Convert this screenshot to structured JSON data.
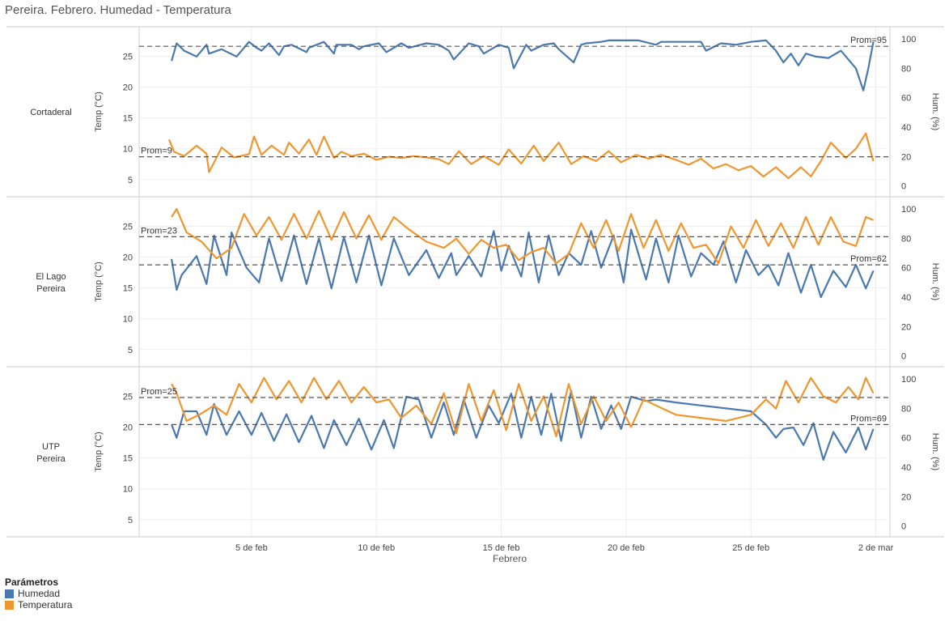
{
  "title": "Pereira. Febrero. Humedad - Temperatura",
  "legend": {
    "title": "Parámetros",
    "items": [
      {
        "label": "Humedad",
        "color": "#4a78b0"
      },
      {
        "label": "Temperatura",
        "color": "#f0962e"
      }
    ]
  },
  "chart_data": {
    "type": "line",
    "xlabel": "Febrero",
    "x_ticks": [
      "5 de feb",
      "10 de feb",
      "15 de feb",
      "20 de feb",
      "25 de feb",
      "2 de mar"
    ],
    "x_tick_days": [
      5,
      10,
      15,
      20,
      25,
      30
    ],
    "xlim": [
      0.5,
      30.5
    ],
    "grid": true,
    "legend_placement": "bottom-left",
    "left_axis": {
      "label": "Temp (°C)",
      "ticks": [
        5,
        10,
        15,
        20,
        25
      ]
    },
    "right_axis": {
      "label": "Hum. (%)",
      "ticks": [
        0,
        20,
        40,
        60,
        80,
        100
      ]
    },
    "panels": [
      {
        "name": "Cortaderal",
        "temp_range": [
          3,
          29
        ],
        "hum_range": [
          -4,
          105
        ],
        "temp_mean": {
          "label": "Prom=9",
          "value": 8.7
        },
        "hum_mean": {
          "label": "Prom=95",
          "value": 95
        },
        "series": [
          {
            "name": "Humedad",
            "axis": "right",
            "x": [
              1.8,
              2.0,
              2.3,
              2.8,
              3.2,
              3.3,
              3.8,
              4.4,
              4.9,
              5.2,
              5.4,
              5.7,
              6.1,
              6.3,
              6.6,
              7.2,
              7.3,
              7.9,
              8.3,
              8.4,
              9.0,
              9.3,
              9.5,
              10.1,
              10.4,
              11.0,
              11.3,
              12.0,
              12.5,
              12.9,
              13.1,
              13.7,
              14.1,
              14.3,
              14.9,
              15.3,
              15.5,
              16.0,
              16.2,
              16.7,
              17.1,
              17.3,
              17.9,
              18.2,
              18.4,
              19.0,
              19.3,
              19.8,
              20.5,
              21.2,
              21.4,
              22.0,
              22.6,
              23.0,
              23.2,
              23.8,
              24.4,
              25.0,
              25.6,
              26.0,
              26.3,
              26.6,
              26.9,
              27.2,
              27.6,
              28.1,
              28.6,
              29.2,
              29.5,
              29.7,
              29.9
            ],
            "y": [
              85,
              97,
              92,
              88,
              96,
              90,
              93,
              88,
              98,
              94,
              92,
              97,
              89,
              95,
              96,
              91,
              94,
              98,
              90,
              96,
              96,
              93,
              95,
              97,
              91,
              97,
              94,
              97,
              96,
              92,
              86,
              97,
              95,
              90,
              96,
              94,
              80,
              96,
              92,
              96,
              97,
              93,
              84,
              96,
              97,
              98,
              99,
              99,
              99,
              96,
              98,
              98,
              98,
              98,
              92,
              97,
              96,
              98,
              99,
              92,
              84,
              90,
              82,
              90,
              88,
              87,
              92,
              80,
              65,
              80,
              98
            ]
          },
          {
            "name": "Temperatura",
            "axis": "left",
            "x": [
              1.7,
              1.9,
              2.3,
              2.8,
              3.2,
              3.3,
              3.8,
              4.3,
              4.9,
              5.1,
              5.4,
              5.8,
              6.3,
              6.5,
              6.9,
              7.3,
              7.6,
              7.9,
              8.3,
              8.6,
              9.0,
              9.5,
              10.0,
              10.5,
              11.0,
              11.5,
              12.0,
              12.5,
              12.9,
              13.3,
              13.8,
              14.3,
              14.9,
              15.3,
              15.8,
              16.3,
              16.7,
              17.3,
              17.8,
              18.3,
              18.8,
              19.3,
              19.8,
              20.4,
              20.9,
              21.4,
              22.0,
              22.5,
              23.0,
              23.5,
              24.0,
              24.5,
              25.0,
              25.5,
              26.0,
              26.5,
              27.0,
              27.4,
              27.8,
              28.2,
              28.8,
              29.2,
              29.6,
              29.9
            ],
            "y": [
              11.5,
              9.5,
              8.8,
              10.5,
              9.2,
              6.2,
              10.2,
              8.6,
              9.1,
              12.0,
              9.0,
              10.5,
              9.0,
              11.0,
              9.2,
              11.5,
              9.0,
              12.0,
              8.5,
              9.5,
              8.8,
              9.2,
              8.2,
              8.7,
              8.5,
              8.8,
              8.6,
              8.3,
              7.5,
              9.6,
              7.5,
              8.8,
              7.4,
              9.9,
              7.6,
              10.5,
              8.0,
              11.0,
              7.5,
              8.8,
              8.0,
              9.6,
              7.8,
              9.0,
              8.4,
              9.0,
              8.2,
              7.4,
              8.4,
              6.8,
              7.5,
              6.5,
              7.2,
              5.5,
              7.0,
              5.2,
              7.0,
              5.5,
              8.0,
              11.0,
              8.5,
              10.0,
              12.5,
              8.0
            ]
          }
        ]
      },
      {
        "name": "El Lago Pereira",
        "temp_range": [
          3,
          29
        ],
        "hum_range": [
          -4,
          105
        ],
        "temp_mean": {
          "label": "Prom=23",
          "value": 23.3
        },
        "hum_mean": {
          "label": "Prom=62",
          "value": 62
        },
        "series": [
          {
            "name": "Humedad",
            "axis": "right",
            "x": [
              1.8,
              2.0,
              2.2,
              2.8,
              3.2,
              3.5,
              4.0,
              4.2,
              4.8,
              5.3,
              5.7,
              6.2,
              6.7,
              7.2,
              7.7,
              8.2,
              8.7,
              9.2,
              9.7,
              10.2,
              10.7,
              11.3,
              12.0,
              12.5,
              13.0,
              13.2,
              13.7,
              14.2,
              14.7,
              15.0,
              15.3,
              15.8,
              16.1,
              16.5,
              16.9,
              17.3,
              17.7,
              18.2,
              18.6,
              19.0,
              19.5,
              19.9,
              20.2,
              20.8,
              21.2,
              21.7,
              22.1,
              22.6,
              23.0,
              23.5,
              23.9,
              24.4,
              24.8,
              25.3,
              25.7,
              26.1,
              26.5,
              27.0,
              27.4,
              27.8,
              28.3,
              28.8,
              29.2,
              29.6,
              29.9
            ],
            "y": [
              66,
              45,
              55,
              68,
              49,
              82,
              55,
              84,
              60,
              50,
              80,
              51,
              82,
              49,
              80,
              46,
              81,
              50,
              82,
              48,
              80,
              55,
              72,
              53,
              70,
              55,
              68,
              54,
              85,
              58,
              75,
              54,
              84,
              50,
              82,
              55,
              70,
              62,
              85,
              60,
              82,
              50,
              86,
              52,
              80,
              50,
              82,
              54,
              70,
              62,
              78,
              50,
              72,
              55,
              62,
              48,
              70,
              43,
              62,
              40,
              58,
              47,
              62,
              46,
              58
            ]
          },
          {
            "name": "Temperatura",
            "axis": "left",
            "x": [
              1.8,
              2.0,
              2.4,
              3.0,
              3.6,
              4.2,
              4.7,
              5.2,
              5.7,
              6.2,
              6.7,
              7.2,
              7.7,
              8.2,
              8.7,
              9.2,
              9.7,
              10.2,
              10.7,
              11.3,
              12.0,
              12.7,
              13.2,
              13.7,
              14.2,
              14.7,
              15.2,
              15.7,
              16.2,
              16.7,
              17.2,
              17.7,
              18.2,
              18.7,
              19.2,
              19.7,
              20.2,
              20.7,
              21.2,
              21.7,
              22.2,
              22.7,
              23.2,
              23.7,
              24.2,
              24.7,
              25.2,
              25.7,
              26.2,
              26.7,
              27.2,
              27.7,
              28.2,
              28.7,
              29.2,
              29.6,
              29.9
            ],
            "y": [
              26.5,
              27.8,
              24.0,
              22.5,
              19.8,
              21.5,
              27.0,
              23.5,
              26.5,
              22.8,
              27.0,
              23.0,
              27.5,
              22.8,
              27.3,
              23.0,
              26.8,
              22.8,
              26.5,
              24.5,
              22.5,
              21.5,
              23.0,
              20.5,
              22.8,
              21.5,
              22.0,
              19.5,
              20.8,
              21.5,
              19.0,
              20.5,
              25.5,
              21.5,
              26.0,
              21.0,
              27.0,
              21.5,
              26.0,
              21.0,
              25.5,
              21.5,
              22.0,
              19.0,
              25.0,
              21.5,
              26.0,
              21.8,
              25.5,
              21.5,
              26.5,
              22.0,
              26.5,
              22.5,
              21.8,
              26.5,
              26.0
            ]
          }
        ]
      },
      {
        "name": "UTP Pereira",
        "temp_range": [
          3,
          29
        ],
        "hum_range": [
          -4,
          105
        ],
        "temp_mean": {
          "label": "Prom=25",
          "value": 24.8
        },
        "hum_mean": {
          "label": "Prom=69",
          "value": 69
        },
        "series": [
          {
            "name": "Humedad",
            "axis": "right",
            "x": [
              1.8,
              2.0,
              2.3,
              2.8,
              3.2,
              3.5,
              4.0,
              4.5,
              5.0,
              5.4,
              5.9,
              6.4,
              6.9,
              7.4,
              7.9,
              8.3,
              8.8,
              9.3,
              9.8,
              10.3,
              10.7,
              11.2,
              11.7,
              12.2,
              12.7,
              13.1,
              13.5,
              14.0,
              14.5,
              14.9,
              15.4,
              15.8,
              16.2,
              16.6,
              17.0,
              17.4,
              17.8,
              18.2,
              18.6,
              19.0,
              19.4,
              19.8,
              20.2,
              20.8,
              21.2,
              22.0,
              23.0,
              24.0,
              25.0,
              25.6,
              26.0,
              26.3,
              26.7,
              27.1,
              27.5,
              27.9,
              28.3,
              28.8,
              29.3,
              29.6,
              29.9
            ],
            "y": [
              69,
              60,
              78,
              78,
              62,
              83,
              62,
              78,
              62,
              77,
              58,
              76,
              57,
              75,
              53,
              72,
              55,
              73,
              52,
              72,
              53,
              88,
              86,
              60,
              84,
              62,
              86,
              60,
              82,
              70,
              90,
              60,
              88,
              62,
              90,
              58,
              92,
              60,
              88,
              66,
              82,
              66,
              88,
              85,
              86,
              84,
              82,
              80,
              78,
              69,
              60,
              66,
              67,
              55,
              70,
              45,
              64,
              50,
              67,
              52,
              66
            ]
          },
          {
            "name": "Temperatura",
            "axis": "left",
            "x": [
              1.8,
              2.0,
              2.4,
              2.9,
              3.5,
              4.0,
              4.5,
              5.0,
              5.5,
              6.0,
              6.5,
              7.0,
              7.5,
              8.0,
              8.5,
              9.0,
              9.5,
              10.0,
              10.5,
              11.0,
              11.6,
              12.2,
              12.7,
              13.2,
              13.7,
              14.2,
              14.7,
              15.2,
              15.7,
              16.2,
              16.7,
              17.2,
              17.7,
              18.2,
              18.7,
              19.2,
              19.7,
              20.2,
              20.7,
              21.2,
              22.0,
              23.0,
              24.0,
              25.0,
              25.6,
              26.0,
              26.4,
              26.9,
              27.4,
              27.9,
              28.4,
              28.9,
              29.3,
              29.6,
              29.9
            ],
            "y": [
              27.0,
              25.5,
              21.0,
              22.0,
              23.5,
              22.0,
              27.0,
              24.0,
              28.0,
              24.5,
              27.5,
              24.0,
              28.0,
              24.5,
              27.5,
              24.0,
              26.5,
              24.0,
              24.5,
              21.5,
              23.5,
              20.5,
              25.5,
              19.0,
              27.0,
              21.0,
              26.0,
              19.5,
              27.0,
              21.0,
              25.0,
              18.5,
              27.0,
              20.5,
              25.0,
              21.0,
              24.0,
              20.0,
              24.5,
              23.5,
              22.0,
              21.5,
              21.0,
              22.0,
              24.5,
              23.0,
              27.5,
              24.0,
              28.0,
              25.0,
              24.0,
              26.5,
              24.5,
              28.0,
              25.5
            ]
          }
        ]
      }
    ]
  }
}
